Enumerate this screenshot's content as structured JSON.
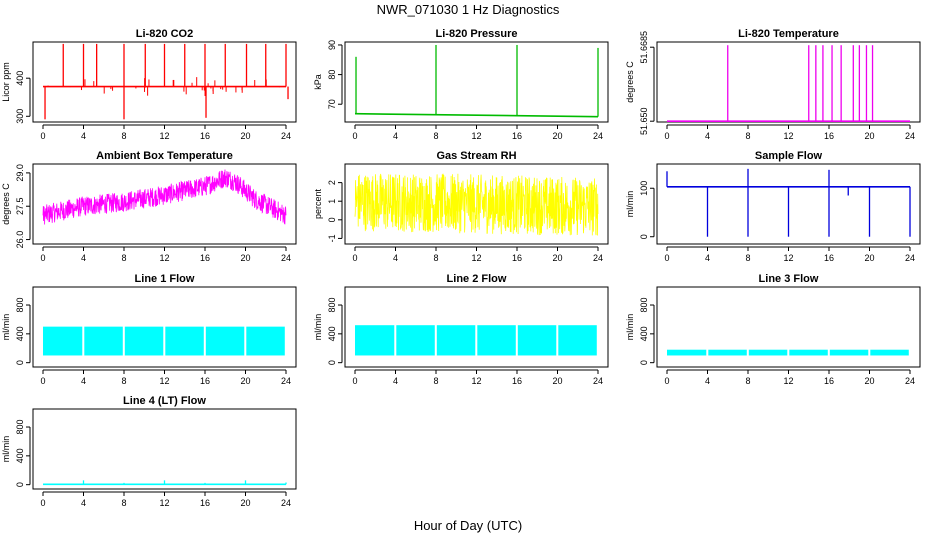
{
  "title": "NWR_071030  1 Hz Diagnostics",
  "xlabel": "Hour of Day (UTC)",
  "chart_data": [
    {
      "type": "line",
      "title": "Li-820 CO2",
      "ylabel": "Licor ppm",
      "color": "#ff0000",
      "xlim": [
        0,
        24
      ],
      "ylim": [
        285,
        495
      ],
      "xticks": [
        0,
        4,
        8,
        12,
        16,
        20,
        24
      ],
      "yticks": [
        {
          "v": 300,
          "label": "300"
        },
        {
          "v": 400,
          "label": "400"
        }
      ],
      "series": [
        {
          "baseline": 378,
          "spikes": [
            [
              2.0,
              490
            ],
            [
              4.0,
              490
            ],
            [
              5.3,
              490
            ],
            [
              8.0,
              490
            ],
            [
              10.1,
              490
            ],
            [
              12.0,
              490
            ],
            [
              14.0,
              490
            ],
            [
              16.0,
              490
            ],
            [
              18.0,
              490
            ],
            [
              20.1,
              490
            ],
            [
              22.0,
              490
            ],
            [
              24.0,
              490
            ],
            [
              0.2,
              292
            ],
            [
              8.0,
              292
            ],
            [
              16.1,
              296
            ],
            [
              24.2,
              345
            ]
          ]
        }
      ]
    },
    {
      "type": "line",
      "title": "Li-820 Pressure",
      "ylabel": "kPa",
      "color": "#00bb00",
      "xlim": [
        0,
        24
      ],
      "ylim": [
        64,
        91
      ],
      "xticks": [
        0,
        4,
        8,
        12,
        16,
        20,
        24
      ],
      "yticks": [
        {
          "v": 70,
          "label": "70"
        },
        {
          "v": 80,
          "label": "80"
        },
        {
          "v": 90,
          "label": "90"
        }
      ],
      "series": [
        {
          "baseline_start": 66.8,
          "baseline_end": 65.8,
          "spikes": [
            [
              0.1,
              86
            ],
            [
              8.0,
              90
            ],
            [
              16.0,
              90
            ],
            [
              24.0,
              89
            ]
          ]
        }
      ]
    },
    {
      "type": "line",
      "title": "Li-820 Temperature",
      "ylabel": "degrees C",
      "color": "#ee00ee",
      "xlim": [
        0,
        24
      ],
      "ylim": [
        51.6498,
        51.6698
      ],
      "xticks": [
        0,
        4,
        8,
        12,
        16,
        20,
        24
      ],
      "yticks": [
        {
          "v": 51.65,
          "label": "51.650"
        },
        {
          "v": 51.6685,
          "label": "51.6685"
        }
      ],
      "series": [
        {
          "baseline": 51.65,
          "spikes": [
            [
              6.0,
              51.669
            ],
            [
              14.0,
              51.669
            ],
            [
              14.7,
              51.669
            ],
            [
              15.4,
              51.669
            ],
            [
              16.3,
              51.669
            ],
            [
              17.2,
              51.669
            ],
            [
              18.4,
              51.669
            ],
            [
              19.0,
              51.669
            ],
            [
              19.7,
              51.669
            ],
            [
              20.3,
              51.669
            ]
          ]
        }
      ]
    },
    {
      "type": "line",
      "title": "Ambient Box Temperature",
      "ylabel": "degrees C",
      "color": "#ff00ff",
      "xlim": [
        0,
        24
      ],
      "ylim": [
        25.8,
        29.4
      ],
      "xticks": [
        0,
        4,
        8,
        12,
        16,
        20,
        24
      ],
      "yticks": [
        {
          "v": 26.0,
          "label": "26.0"
        },
        {
          "v": 27.5,
          "label": "27.5"
        },
        {
          "v": 29.0,
          "label": "29.0"
        }
      ],
      "series": [
        {
          "profile": [
            [
              0,
              27.1
            ],
            [
              2,
              27.3
            ],
            [
              4,
              27.5
            ],
            [
              8,
              27.7
            ],
            [
              12,
              28.0
            ],
            [
              14,
              28.2
            ],
            [
              16,
              28.4
            ],
            [
              18,
              28.8
            ],
            [
              19,
              28.6
            ],
            [
              21,
              27.8
            ],
            [
              24,
              27.1
            ]
          ],
          "noise": 0.45
        }
      ]
    },
    {
      "type": "line",
      "title": "Gas Stream RH",
      "ylabel": "percent",
      "color": "#ffff00",
      "xlim": [
        0,
        24
      ],
      "ylim": [
        -1.3,
        3.0
      ],
      "xticks": [
        0,
        4,
        8,
        12,
        16,
        20,
        24
      ],
      "yticks": [
        {
          "v": -1,
          "label": "-1"
        },
        {
          "v": 0,
          "label": "0"
        },
        {
          "v": 1,
          "label": "1"
        },
        {
          "v": 2,
          "label": "2"
        }
      ],
      "series": [
        {
          "profile": [
            [
              0,
              1.0
            ],
            [
              24,
              0.7
            ]
          ],
          "noise": 1.6
        }
      ]
    },
    {
      "type": "line",
      "title": "Sample Flow",
      "ylabel": "ml/min",
      "color": "#0000dd",
      "xlim": [
        0,
        24
      ],
      "ylim": [
        -15,
        150
      ],
      "xticks": [
        0,
        4,
        8,
        12,
        16,
        20,
        24
      ],
      "yticks": [
        {
          "v": 0,
          "label": "0"
        },
        {
          "v": 100,
          "label": "100"
        }
      ],
      "series": [
        {
          "baseline": 103,
          "spikes": [
            [
              0.0,
              135
            ],
            [
              8.0,
              140
            ],
            [
              16.0,
              138
            ],
            [
              4.0,
              0
            ],
            [
              8.0,
              0
            ],
            [
              12.0,
              0
            ],
            [
              16.0,
              0
            ],
            [
              20.0,
              0
            ],
            [
              24.0,
              0
            ],
            [
              17.9,
              85
            ]
          ]
        }
      ]
    },
    {
      "type": "area",
      "title": "Line 1 Flow",
      "ylabel": "ml/min",
      "color": "#00ffff",
      "xlim": [
        0,
        24
      ],
      "ylim": [
        -60,
        1050
      ],
      "xticks": [
        0,
        4,
        8,
        12,
        16,
        20,
        24
      ],
      "yticks": [
        {
          "v": 0,
          "label": "0"
        },
        {
          "v": 400,
          "label": "400"
        },
        {
          "v": 800,
          "label": "800"
        }
      ],
      "series": [
        {
          "low": 100,
          "high": 500,
          "gaps": [
            4,
            8,
            12,
            16,
            20,
            24
          ]
        }
      ]
    },
    {
      "type": "area",
      "title": "Line 2 Flow",
      "ylabel": "ml/min",
      "color": "#00ffff",
      "xlim": [
        0,
        24
      ],
      "ylim": [
        -60,
        1050
      ],
      "xticks": [
        0,
        4,
        8,
        12,
        16,
        20,
        24
      ],
      "yticks": [
        {
          "v": 0,
          "label": "0"
        },
        {
          "v": 400,
          "label": "400"
        },
        {
          "v": 800,
          "label": "800"
        }
      ],
      "series": [
        {
          "low": 100,
          "high": 520,
          "gaps": [
            4,
            8,
            12,
            16,
            20,
            24
          ]
        }
      ]
    },
    {
      "type": "area",
      "title": "Line 3 Flow",
      "ylabel": "ml/min",
      "color": "#00ffff",
      "xlim": [
        0,
        24
      ],
      "ylim": [
        -60,
        1050
      ],
      "xticks": [
        0,
        4,
        8,
        12,
        16,
        20,
        24
      ],
      "yticks": [
        {
          "v": 0,
          "label": "0"
        },
        {
          "v": 400,
          "label": "400"
        },
        {
          "v": 800,
          "label": "800"
        }
      ],
      "series": [
        {
          "low": 100,
          "high": 180,
          "gaps": [
            4,
            8,
            12,
            16,
            20,
            24
          ]
        }
      ]
    },
    {
      "type": "line",
      "title": "Line 4 (LT) Flow",
      "ylabel": "ml/min",
      "color": "#00ffff",
      "xlim": [
        0,
        24
      ],
      "ylim": [
        -60,
        1050
      ],
      "xticks": [
        0,
        4,
        8,
        12,
        16,
        20,
        24
      ],
      "yticks": [
        {
          "v": 0,
          "label": "0"
        },
        {
          "v": 400,
          "label": "400"
        },
        {
          "v": 800,
          "label": "800"
        }
      ],
      "series": [
        {
          "baseline": 5,
          "spikes": [
            [
              4.0,
              60
            ],
            [
              8.0,
              25
            ],
            [
              12.0,
              60
            ],
            [
              16.0,
              25
            ],
            [
              20.0,
              60
            ],
            [
              24.0,
              30
            ]
          ]
        }
      ]
    }
  ]
}
